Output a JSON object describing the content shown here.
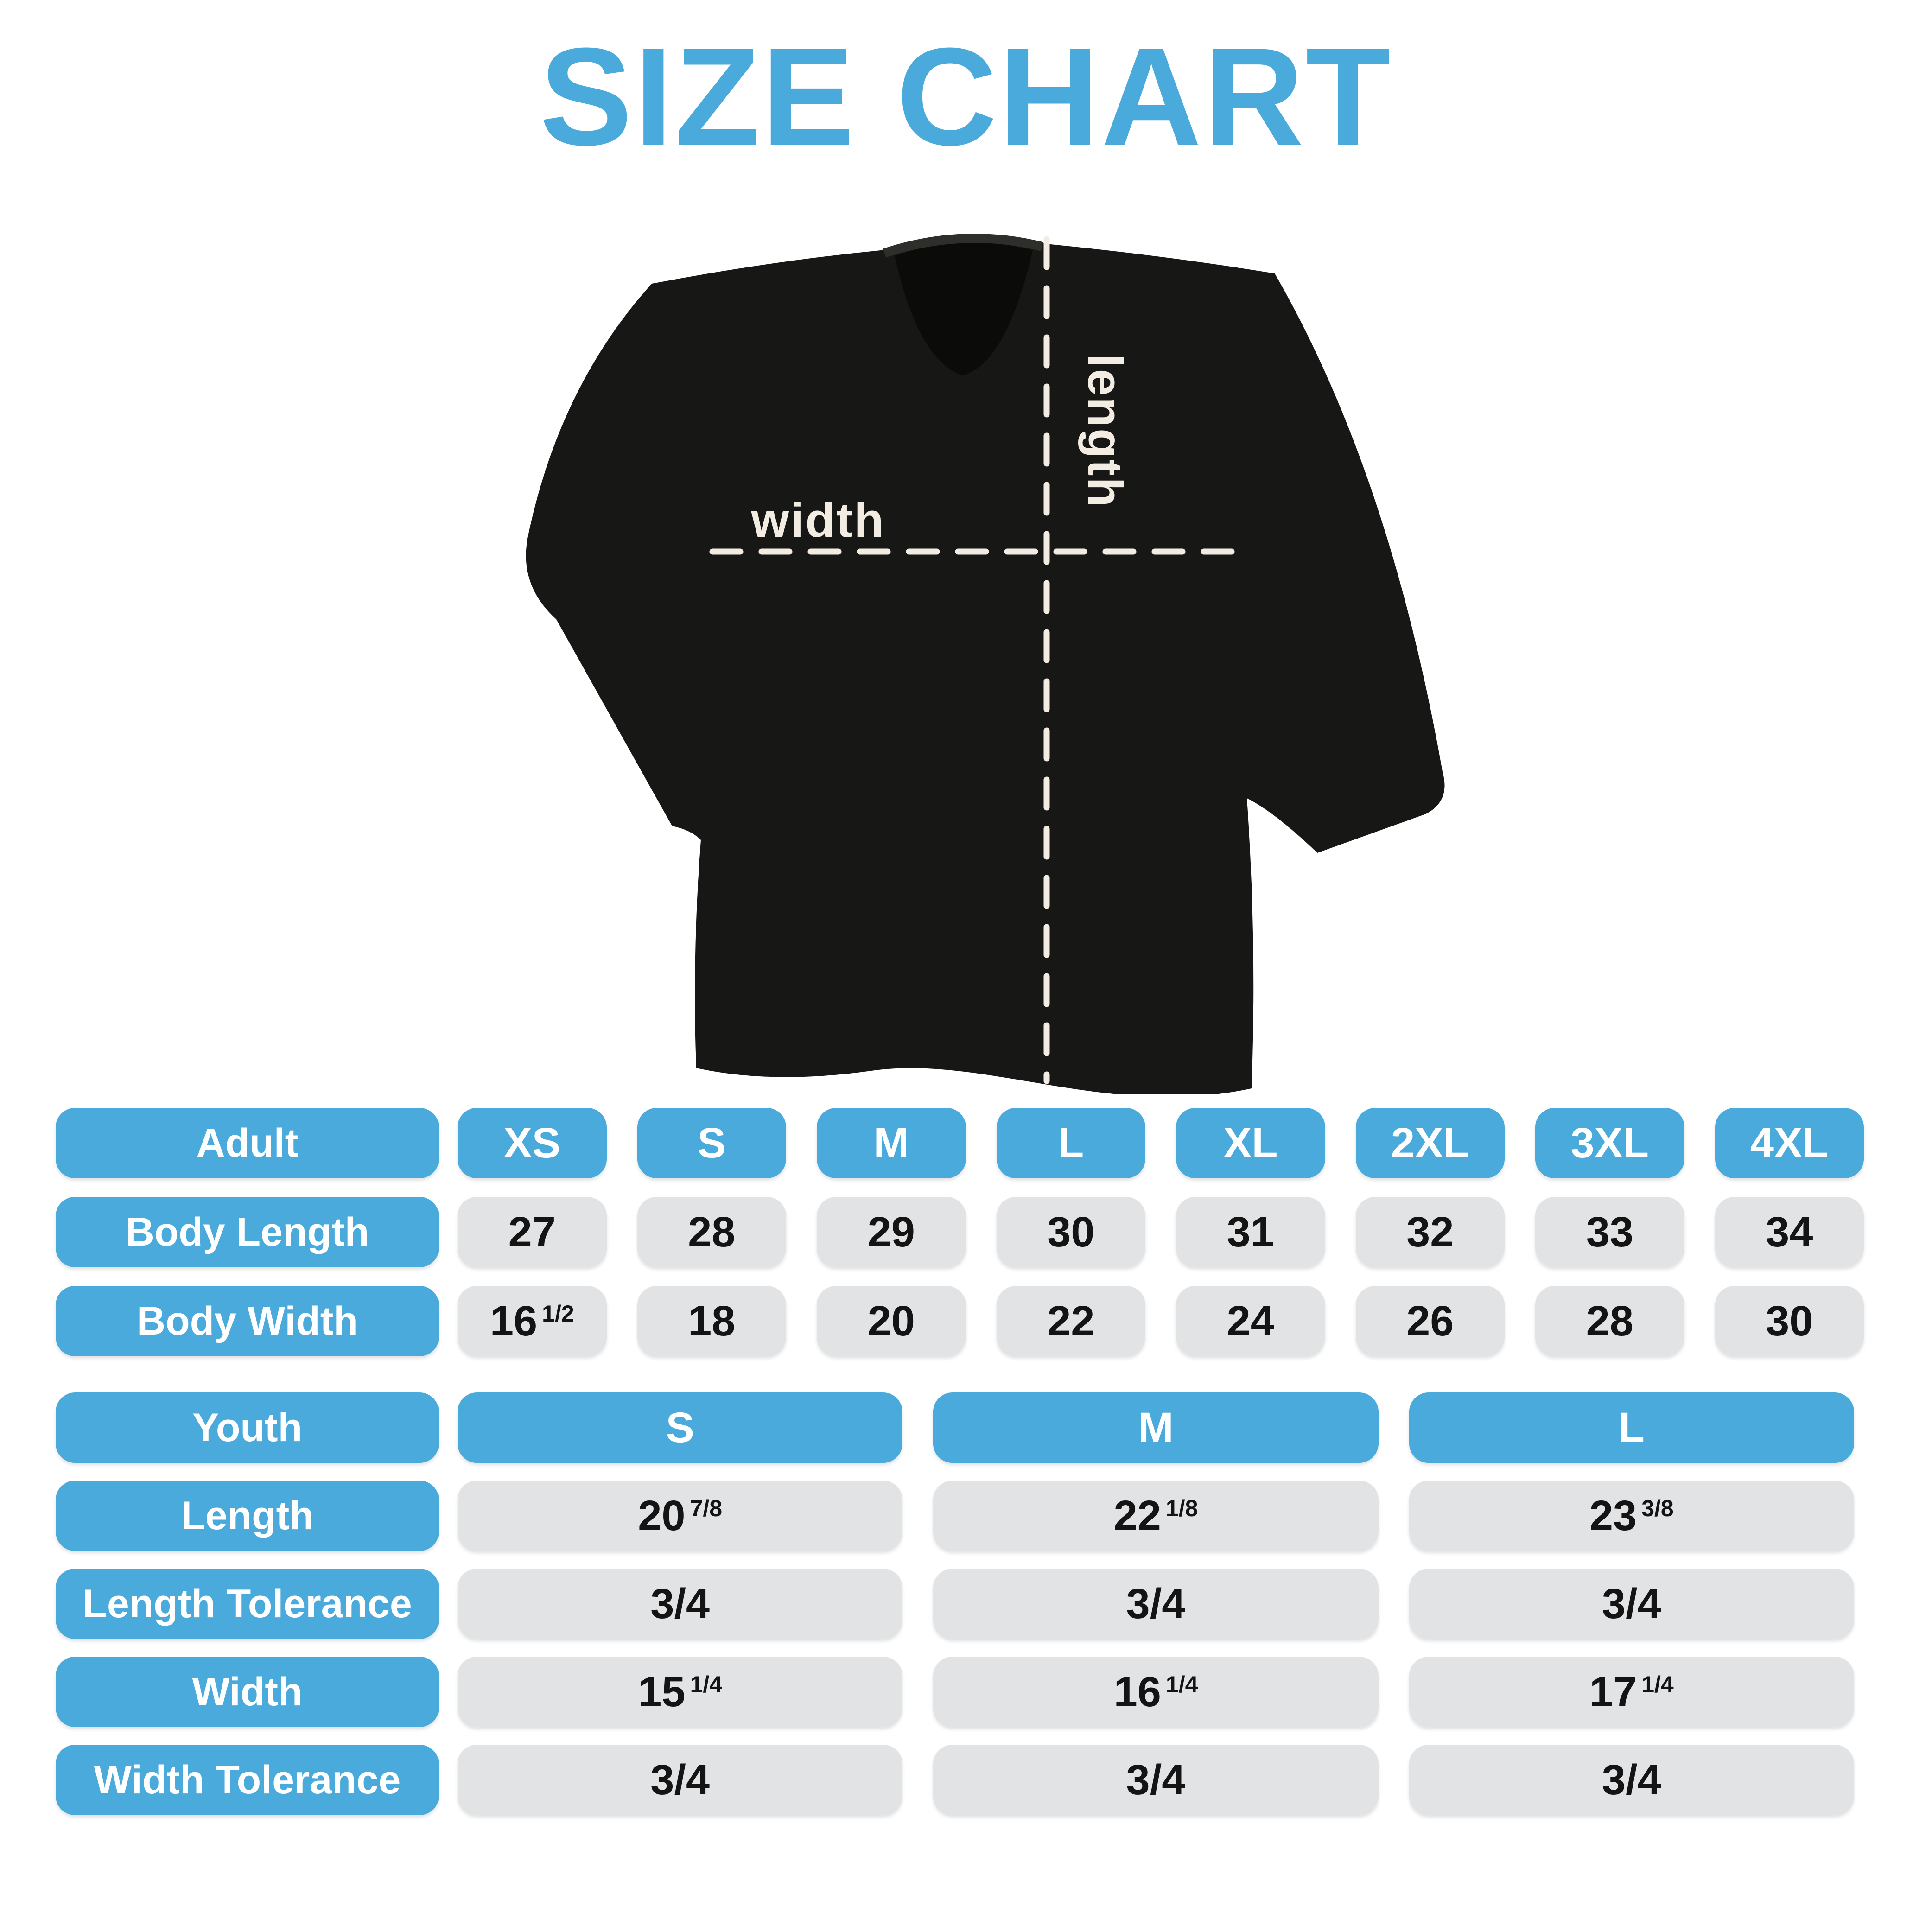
{
  "title": "SIZE CHART",
  "colors": {
    "accent_blue": "#4BAADC",
    "cell_gray": "#E2E3E5",
    "shirt_black": "#171715",
    "cream": "#F2ECE3",
    "value_text": "#141414",
    "header_text": "#FFFFFF"
  },
  "diagram": {
    "width_label": "width",
    "length_label": "length"
  },
  "adult_table": {
    "header": "Adult",
    "sizes": [
      "XS",
      "S",
      "M",
      "L",
      "XL",
      "2XL",
      "3XL",
      "4XL"
    ],
    "rows": [
      {
        "label": "Body Length",
        "values": [
          {
            "main": "27"
          },
          {
            "main": "28"
          },
          {
            "main": "29"
          },
          {
            "main": "30"
          },
          {
            "main": "31"
          },
          {
            "main": "32"
          },
          {
            "main": "33"
          },
          {
            "main": "34"
          }
        ]
      },
      {
        "label": "Body Width",
        "values": [
          {
            "main": "16",
            "frac": "1/2"
          },
          {
            "main": "18"
          },
          {
            "main": "20"
          },
          {
            "main": "22"
          },
          {
            "main": "24"
          },
          {
            "main": "26"
          },
          {
            "main": "28"
          },
          {
            "main": "30"
          }
        ]
      }
    ]
  },
  "youth_table": {
    "header": "Youth",
    "sizes": [
      "S",
      "M",
      "L"
    ],
    "rows": [
      {
        "label": "Length",
        "values": [
          {
            "main": "20",
            "frac": "7/8"
          },
          {
            "main": "22",
            "frac": "1/8"
          },
          {
            "main": "23",
            "frac": "3/8"
          }
        ]
      },
      {
        "label": "Length Tolerance",
        "values": [
          {
            "main": "3/4"
          },
          {
            "main": "3/4"
          },
          {
            "main": "3/4"
          }
        ]
      },
      {
        "label": "Width",
        "values": [
          {
            "main": "15",
            "frac": "1/4"
          },
          {
            "main": "16",
            "frac": "1/4"
          },
          {
            "main": "17",
            "frac": "1/4"
          }
        ]
      },
      {
        "label": "Width Tolerance",
        "values": [
          {
            "main": "3/4"
          },
          {
            "main": "3/4"
          },
          {
            "main": "3/4"
          }
        ]
      }
    ]
  }
}
